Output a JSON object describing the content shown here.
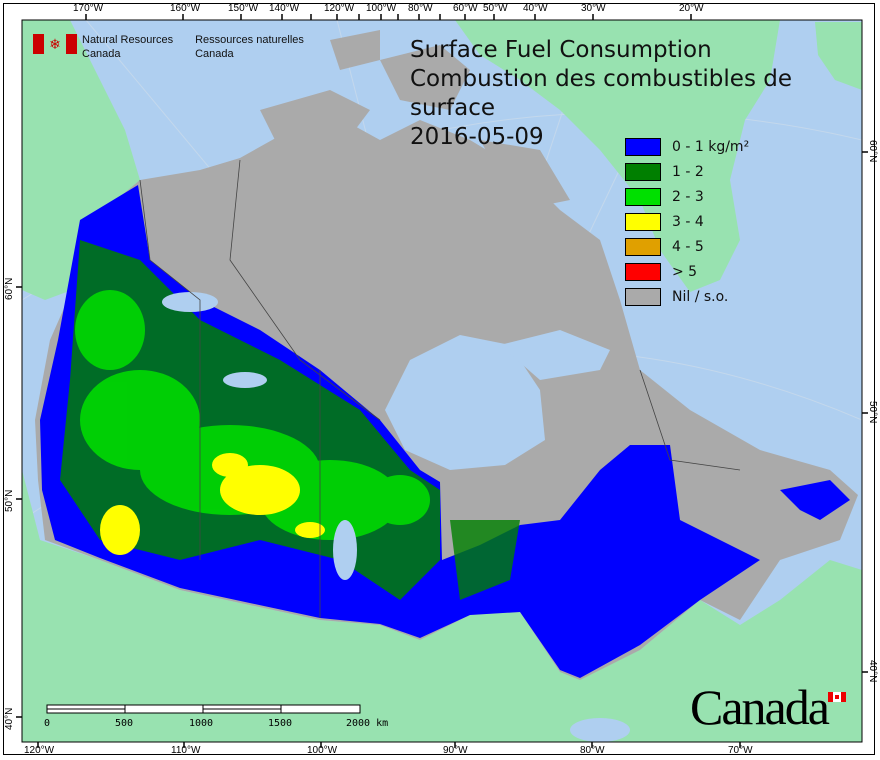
{
  "title": {
    "line1": "Surface Fuel Consumption",
    "line2": "Combustion des combustibles de surface",
    "date": "2016-05-09"
  },
  "agency": {
    "en_line1": "Natural Resources",
    "en_line2": "Canada",
    "fr_line1": "Ressources naturelles",
    "fr_line2": "Canada"
  },
  "legend": [
    {
      "label": "0 - 1 kg/m²",
      "color": "#0000ff"
    },
    {
      "label": "1 - 2",
      "color": "#007f00"
    },
    {
      "label": "2 - 3",
      "color": "#00e000"
    },
    {
      "label": "3 - 4",
      "color": "#ffff00"
    },
    {
      "label": "4 - 5",
      "color": "#e0a000"
    },
    {
      "label": "> 5",
      "color": "#ff0000"
    },
    {
      "label": "Nil / s.o.",
      "color": "#aaaaaa"
    }
  ],
  "axes": {
    "top": [
      "170°W",
      "160°W",
      "150°W",
      "140°W",
      "120°W",
      "100°W",
      "80°W",
      "60°W",
      "50°W",
      "40°W",
      "30°W",
      "20°W"
    ],
    "bottom": [
      "120°W",
      "110°W",
      "100°W",
      "90°W",
      "80°W",
      "70°W"
    ],
    "left": [
      "60°N",
      "50°N",
      "40°N"
    ],
    "right": [
      "60°N",
      "50°N",
      "40°N"
    ]
  },
  "scale_bar": {
    "labels": [
      "0",
      "500",
      "1000",
      "1500",
      "2000 km"
    ]
  },
  "wordmark": "Canada",
  "colors": {
    "water": "#afcff0",
    "land": "#98e2b0",
    "nodata": "#aaaaaa"
  }
}
